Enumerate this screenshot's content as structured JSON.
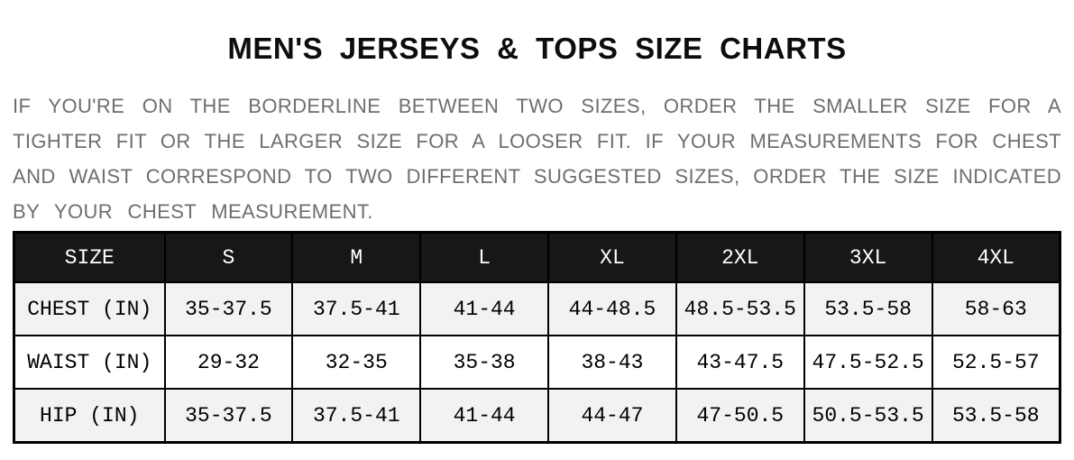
{
  "page": {
    "title": "MEN'S JERSEYS & TOPS SIZE CHARTS"
  },
  "intro": {
    "lines": [
      "IF YOU'RE ON THE BORDERLINE BETWEEN TWO SIZES, ORDER THE SMALLER SIZE FOR A",
      "TIGHTER FIT OR THE LARGER SIZE FOR A LOOSER FIT. IF YOUR MEASUREMENTS FOR CHEST",
      "AND WAIST CORRESPOND TO TWO DIFFERENT SUGGESTED SIZES, ORDER THE SIZE INDICATED",
      "BY YOUR CHEST MEASUREMENT."
    ]
  },
  "size_table": {
    "headers": [
      "SIZE",
      "S",
      "M",
      "L",
      "XL",
      "2XL",
      "3XL",
      "4XL"
    ],
    "rows": [
      {
        "label": "CHEST (IN)",
        "values": [
          "35-37.5",
          "37.5-41",
          "41-44",
          "44-48.5",
          "48.5-53.5",
          "53.5-58",
          "58-63"
        ]
      },
      {
        "label": "WAIST (IN)",
        "values": [
          "29-32",
          "32-35",
          "35-38",
          "38-43",
          "43-47.5",
          "47.5-52.5",
          "52.5-57"
        ]
      },
      {
        "label": "HIP (IN)",
        "values": [
          "35-37.5",
          "37.5-41",
          "41-44",
          "44-47",
          "47-50.5",
          "50.5-53.5",
          "53.5-58"
        ]
      }
    ]
  },
  "chart_data": {
    "type": "table",
    "title": "MEN'S JERSEYS & TOPS SIZE CHARTS",
    "columns": [
      "SIZE",
      "S",
      "M",
      "L",
      "XL",
      "2XL",
      "3XL",
      "4XL"
    ],
    "rows": [
      [
        "CHEST (IN)",
        "35-37.5",
        "37.5-41",
        "41-44",
        "44-48.5",
        "48.5-53.5",
        "53.5-58",
        "58-63"
      ],
      [
        "WAIST (IN)",
        "29-32",
        "32-35",
        "35-38",
        "38-43",
        "43-47.5",
        "47.5-52.5",
        "52.5-57"
      ],
      [
        "HIP (IN)",
        "35-37.5",
        "37.5-41",
        "41-44",
        "44-47",
        "47-50.5",
        "50.5-53.5",
        "53.5-58"
      ]
    ]
  },
  "colors": {
    "header_bg": "#171717",
    "header_text": "#ffffff",
    "stripe_bg": "#f2f2f2",
    "intro_text": "#6e6e6e",
    "border": "#000000"
  }
}
